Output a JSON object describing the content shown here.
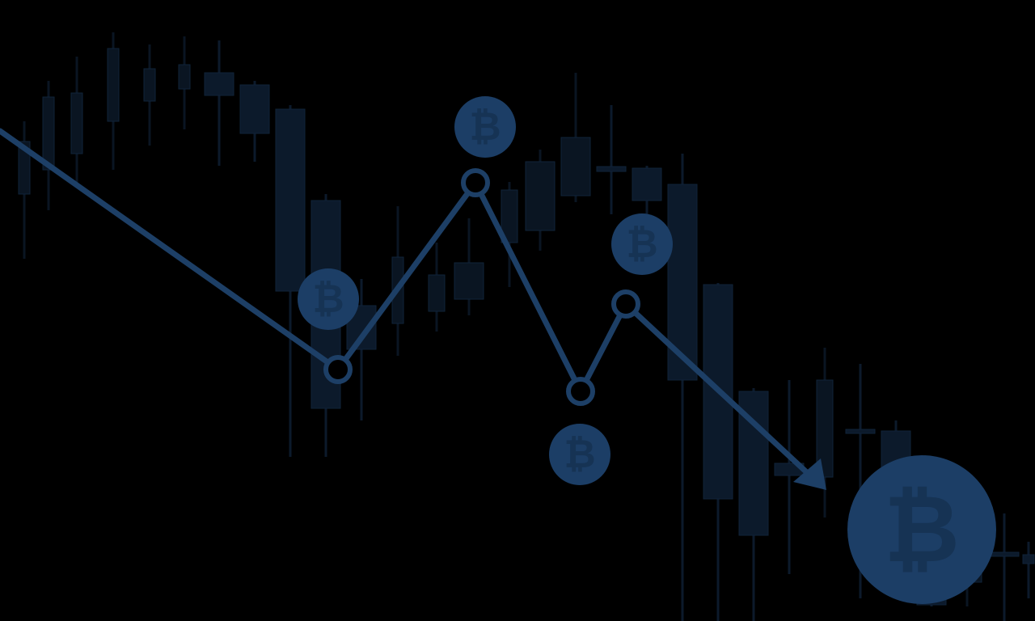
{
  "background_color": "#000000",
  "colors": {
    "candle_faint": "#0c1a2b",
    "candle_dim": "#0a1522",
    "trend_line": "#1d3f66",
    "coin": "#1c3e66",
    "coin_symbol": "#163354",
    "node_fill": "#000000"
  },
  "icons": {
    "coin_icon": "bitcoin-icon",
    "arrow_icon": "arrow-head-icon"
  },
  "coin_symbol": "₿"
}
